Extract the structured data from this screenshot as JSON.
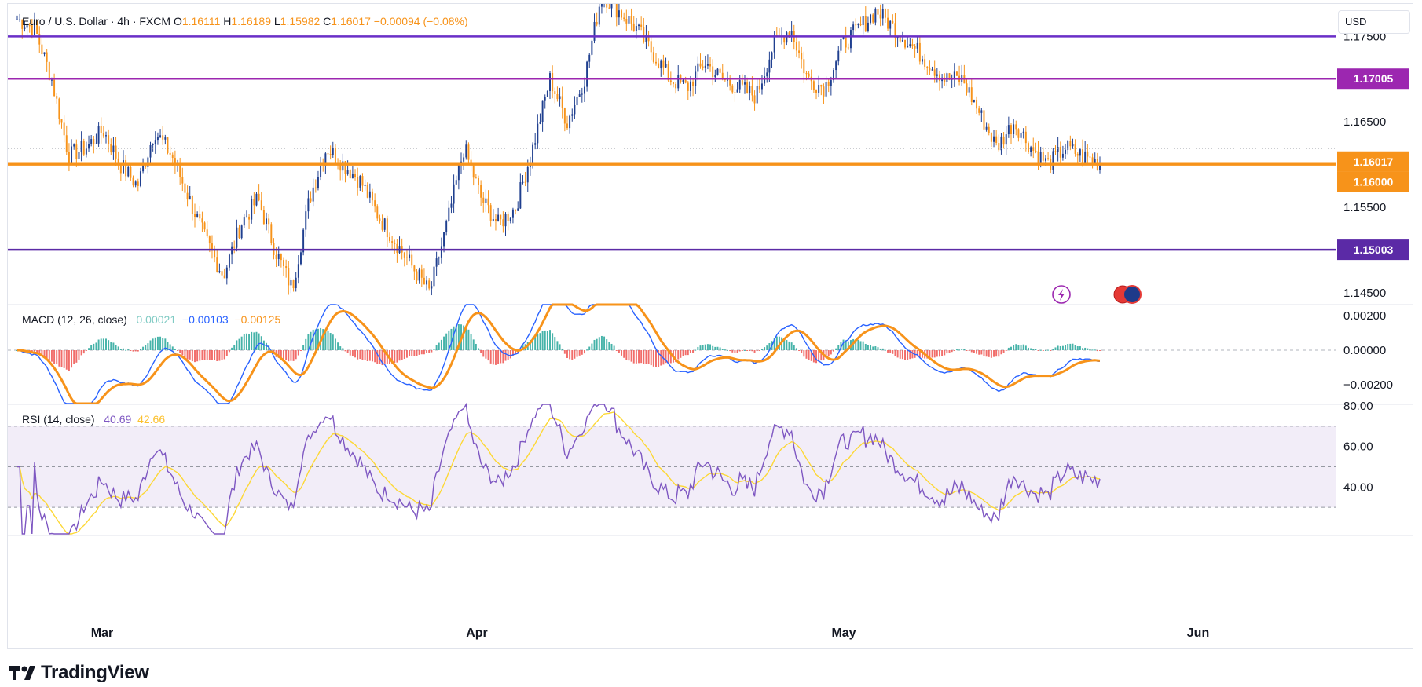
{
  "header": {
    "symbol": "Euro / U.S. Dollar · 4h · FXCM",
    "o_label": "O",
    "o": "1.16111",
    "h_label": "H",
    "h": "1.16189",
    "l_label": "L",
    "l": "1.15982",
    "c_label": "C",
    "c": "1.16017",
    "change": "−0.00094 (−0.08%)"
  },
  "currency": "USD",
  "price_axis": {
    "ticks": [
      "1.17500",
      "1.16500",
      "1.15500",
      "1.14500"
    ],
    "ylim": [
      1.1437,
      1.1788
    ]
  },
  "level_lines": [
    {
      "value": 1.175,
      "label": "",
      "color": "#6a2fc7"
    },
    {
      "value": 1.17005,
      "label": "1.17005",
      "color": "#9c27b0"
    },
    {
      "value": 1.16017,
      "label": "1.16017",
      "color": "#f7931a"
    },
    {
      "value": 1.16,
      "label": "1.16000",
      "color": "#f7931a"
    },
    {
      "value": 1.15003,
      "label": "1.15003",
      "color": "#5b2aa6"
    }
  ],
  "time_axis": {
    "labels": [
      "Mar",
      "Apr",
      "May",
      "Jun"
    ]
  },
  "macd": {
    "title": "MACD (12, 26, close)",
    "hist": "0.00021",
    "macd": "−0.00103",
    "signal": "−0.00125",
    "ticks": [
      "0.00200",
      "0.00000",
      "−0.00200"
    ]
  },
  "rsi": {
    "title": "RSI (14, close)",
    "rsi": "40.69",
    "ma": "42.66",
    "ticks": [
      "80.00",
      "60.00",
      "40.00"
    ]
  },
  "brand": "TradingView",
  "colors": {
    "up": "#1f3f8f",
    "down": "#f7931a",
    "macd_line": "#2962ff",
    "signal_line": "#f7931a",
    "hist_up": "#26a69a",
    "hist_down": "#ef5350",
    "rsi_line": "#7e57c2",
    "rsi_ma": "#fdd835"
  },
  "chart_data": {
    "type": "candlestick",
    "title": "Euro / U.S. Dollar · 4h · FXCM",
    "x": [
      "2025-02-24",
      "2025-02-25",
      "2025-02-26",
      "2025-02-27",
      "2025-02-28",
      "2025-03-03",
      "2025-03-04",
      "2025-03-05",
      "2025-03-06",
      "2025-03-07",
      "2025-03-10",
      "2025-03-11",
      "2025-03-12",
      "2025-03-13",
      "2025-03-14",
      "2025-03-17",
      "2025-03-18",
      "2025-03-19",
      "2025-03-20",
      "2025-03-21",
      "2025-03-24",
      "2025-03-25",
      "2025-03-26",
      "2025-03-27",
      "2025-03-28",
      "2025-03-31",
      "2025-04-01",
      "2025-04-02",
      "2025-04-03",
      "2025-04-04",
      "2025-04-07",
      "2025-04-08",
      "2025-04-09",
      "2025-04-10",
      "2025-04-11",
      "2025-04-14",
      "2025-04-15",
      "2025-04-16",
      "2025-04-17",
      "2025-04-18",
      "2025-04-21",
      "2025-04-22",
      "2025-04-23",
      "2025-04-24",
      "2025-04-25",
      "2025-04-28",
      "2025-04-29",
      "2025-04-30",
      "2025-05-01",
      "2025-05-02",
      "2025-05-05",
      "2025-05-06",
      "2025-05-07",
      "2025-05-08",
      "2025-05-09",
      "2025-05-12",
      "2025-05-13",
      "2025-05-14",
      "2025-05-15",
      "2025-05-16",
      "2025-05-19",
      "2025-05-20",
      "2025-05-21",
      "2025-05-22"
    ],
    "close": [
      1.177,
      1.176,
      1.17,
      1.161,
      1.162,
      1.164,
      1.16,
      1.1575,
      1.164,
      1.161,
      1.156,
      1.151,
      1.147,
      1.153,
      1.156,
      1.15,
      1.1455,
      1.156,
      1.162,
      1.16,
      1.158,
      1.154,
      1.151,
      1.148,
      1.145,
      1.153,
      1.162,
      1.156,
      1.153,
      1.155,
      1.162,
      1.17,
      1.165,
      1.17,
      1.18,
      1.178,
      1.176,
      1.173,
      1.17,
      1.169,
      1.172,
      1.17,
      1.169,
      1.168,
      1.174,
      1.176,
      1.17,
      1.169,
      1.174,
      1.176,
      1.178,
      1.176,
      1.174,
      1.172,
      1.17,
      1.17,
      1.166,
      1.162,
      1.165,
      1.162,
      1.16,
      1.162,
      1.161,
      1.16017
    ],
    "ylim": [
      1.1437,
      1.1788
    ],
    "ylabel": "",
    "xlabel": ""
  }
}
